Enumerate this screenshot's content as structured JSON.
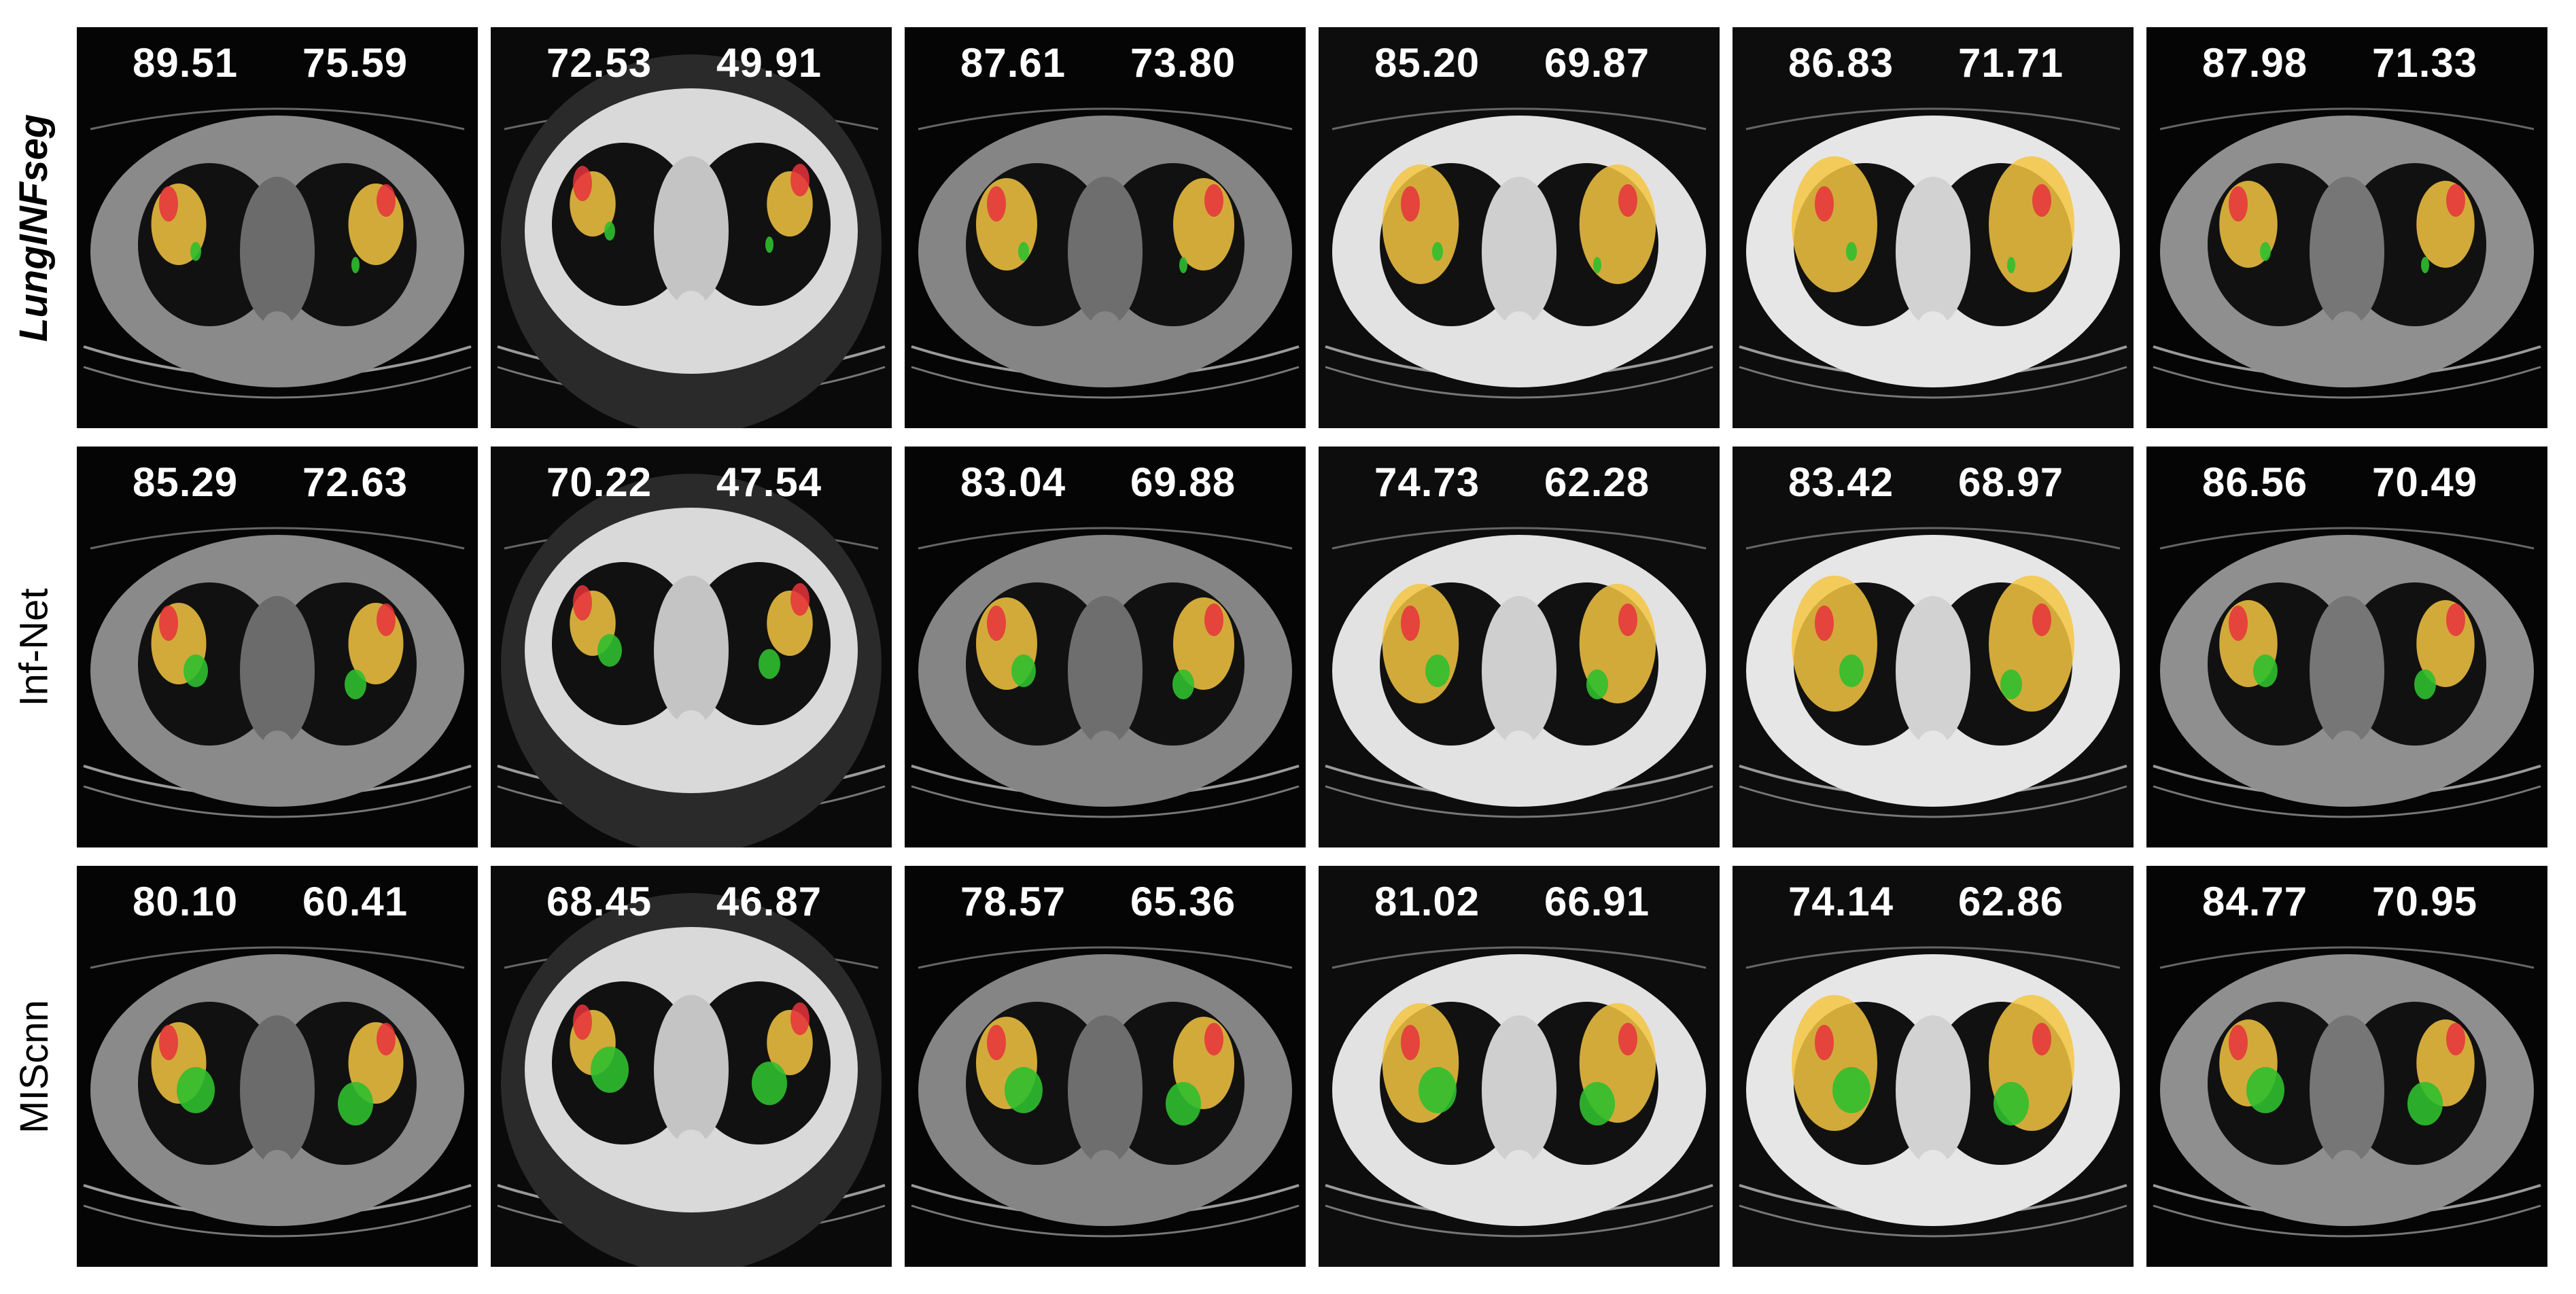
{
  "rows": [
    {
      "label": "LungINFseg",
      "scores": [
        [
          "89.51",
          "75.59"
        ],
        [
          "72.53",
          "49.91"
        ],
        [
          "87.61",
          "73.80"
        ],
        [
          "85.20",
          "69.87"
        ],
        [
          "86.83",
          "71.71"
        ],
        [
          "87.98",
          "71.33"
        ]
      ]
    },
    {
      "label": "Inf-Net",
      "scores": [
        [
          "85.29",
          "72.63"
        ],
        [
          "70.22",
          "47.54"
        ],
        [
          "83.04",
          "69.88"
        ],
        [
          "74.73",
          "62.28"
        ],
        [
          "83.42",
          "68.97"
        ],
        [
          "86.56",
          "70.49"
        ]
      ]
    },
    {
      "label": "MIScnn",
      "scores": [
        [
          "80.10",
          "60.41"
        ],
        [
          "68.45",
          "46.87"
        ],
        [
          "78.57",
          "65.36"
        ],
        [
          "81.02",
          "66.91"
        ],
        [
          "74.14",
          "62.86"
        ],
        [
          "84.77",
          "70.95"
        ]
      ]
    }
  ],
  "columns": [
    {
      "body": "#8a8a8a",
      "inner": "#6b6b6b",
      "bg": "#050505"
    },
    {
      "body": "#d9d9d9",
      "inner": "#c4c4c4",
      "bg": "#0a0a0a"
    },
    {
      "body": "#858585",
      "inner": "#6e6e6e",
      "bg": "#050505"
    },
    {
      "body": "#e2e2e2",
      "inner": "#cfcfcf",
      "bg": "#0d0d0d"
    },
    {
      "body": "#e6e6e6",
      "inner": "#d2d2d2",
      "bg": "#0d0d0d"
    },
    {
      "body": "#8f8f8f",
      "inner": "#767676",
      "bg": "#050505"
    }
  ],
  "overlay_colors": {
    "overlap": "#f5c542",
    "false_negative": "#e8323c",
    "false_positive": "#2fbf2f"
  }
}
